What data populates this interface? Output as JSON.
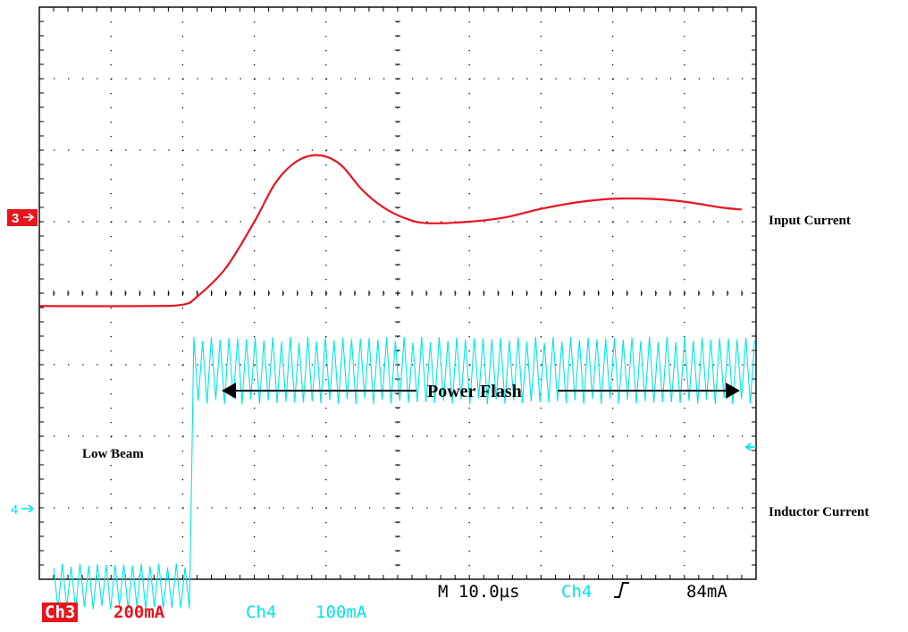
{
  "chart_data": {
    "type": "line",
    "title": "",
    "grid": true,
    "x_divisions": 10,
    "y_divisions": 8,
    "series": [
      {
        "name": "Input Current",
        "channel": "Ch3",
        "color": "#e8141e",
        "x_div": [
          0,
          1.5,
          2.0,
          2.2,
          2.6,
          3.0,
          3.3,
          3.6,
          3.9,
          4.2,
          4.5,
          4.8,
          5.1,
          5.4,
          6.0,
          6.5,
          7.0,
          7.5,
          8.0,
          8.5,
          9.0,
          9.5,
          9.8
        ],
        "y_div": [
          -0.18,
          -0.18,
          -0.16,
          -0.05,
          0.35,
          1.0,
          1.55,
          1.85,
          1.93,
          1.8,
          1.45,
          1.2,
          1.05,
          0.98,
          1.0,
          1.06,
          1.18,
          1.27,
          1.32,
          1.32,
          1.28,
          1.2,
          1.17
        ]
      },
      {
        "name": "Inductor Current",
        "channel": "Ch4",
        "color": "#00e5e8",
        "step_at_div": 2.15,
        "low_level_div": -4.1,
        "low_ripple_div": 0.32,
        "high_level_div": -1.08,
        "high_ripple_div": 0.47,
        "ripple_cycles": 160
      }
    ],
    "annotations": {
      "low_beam": "Low Beam",
      "power_flash": "Power Flash",
      "input_current": "Input Current",
      "inductor_current": "Inductor Current"
    },
    "markers": {
      "ch3_marker": "3",
      "ch4_marker": "4"
    },
    "readout": {
      "ch3_label": "Ch3",
      "ch3_scale": "200mA",
      "ch4_label": "Ch4",
      "ch4_scale": "100mA",
      "timebase": "M 10.0µs",
      "trigger_channel": "Ch4",
      "trigger_level": "84mA"
    },
    "colors": {
      "ch3": "#e8141e",
      "ch4": "#00e5e8",
      "grid": "#000000"
    }
  }
}
